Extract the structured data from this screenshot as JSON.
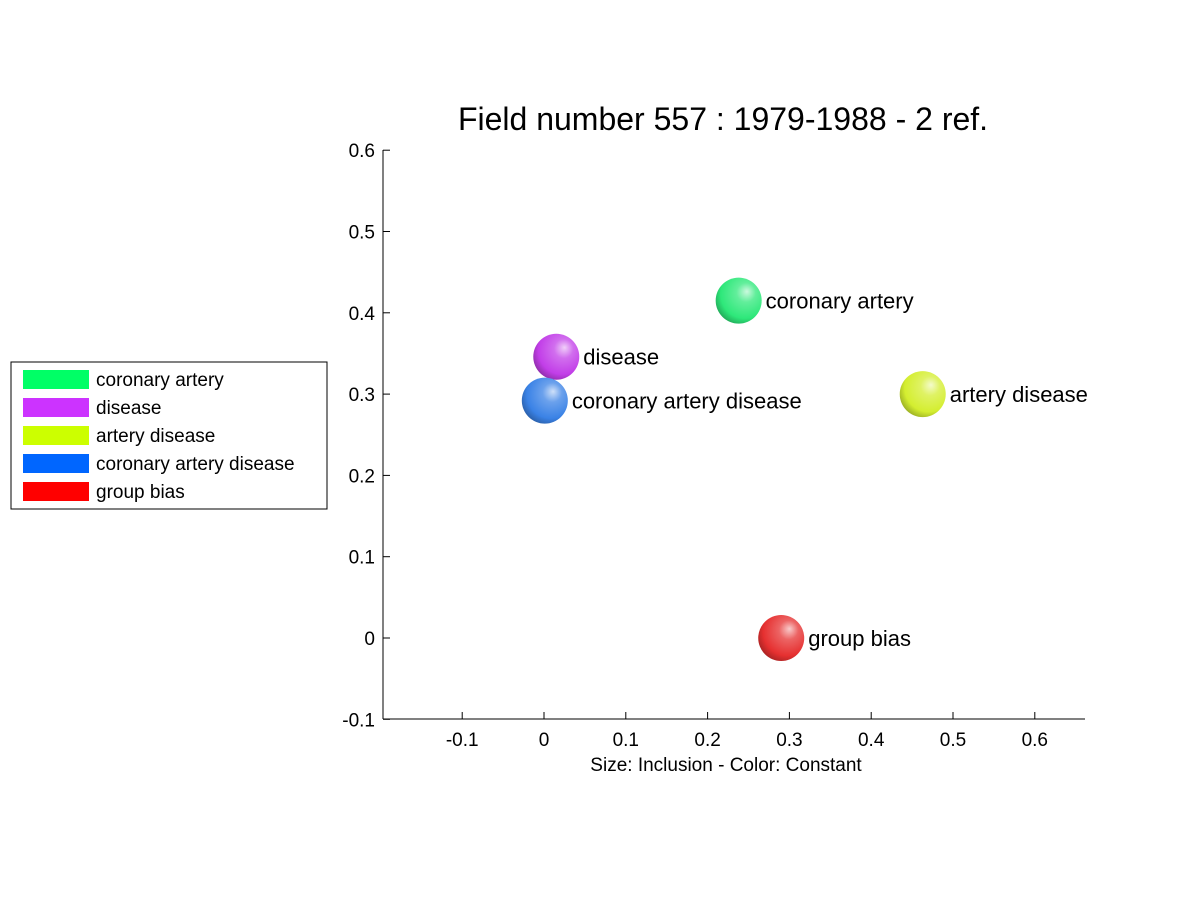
{
  "chart_data": {
    "type": "scatter",
    "title": "Field number 557 : 1979-1988  - 2 ref.",
    "xlabel": "Size: Inclusion - Color: Constant",
    "ylabel": "",
    "xlim": [
      -0.2,
      0.66
    ],
    "ylim": [
      -0.1,
      0.6
    ],
    "xticks": [
      -0.1,
      0,
      0.1,
      0.2,
      0.3,
      0.4,
      0.5,
      0.6
    ],
    "yticks": [
      -0.1,
      0,
      0.1,
      0.2,
      0.3,
      0.4,
      0.5,
      0.6
    ],
    "xtick_labels": [
      "-0.1",
      "0",
      "0.1",
      "0.2",
      "0.3",
      "0.4",
      "0.5",
      "0.6"
    ],
    "ytick_labels": [
      "-0.1",
      "0",
      "0.1",
      "0.2",
      "0.3",
      "0.4",
      "0.5",
      "0.6"
    ],
    "grid": false,
    "legend_position": "left",
    "points": [
      {
        "label": "coronary artery",
        "x": 0.238,
        "y": 0.415,
        "color": "#2ee87a",
        "legend_color": "#00ff66"
      },
      {
        "label": "disease",
        "x": 0.015,
        "y": 0.346,
        "color": "#c23ee8",
        "legend_color": "#cc33ff"
      },
      {
        "label": "artery disease",
        "x": 0.463,
        "y": 0.3,
        "color": "#d4ee30",
        "legend_color": "#ccff00"
      },
      {
        "label": "coronary artery disease",
        "x": 0.001,
        "y": 0.292,
        "color": "#3a82e6",
        "legend_color": "#0066ff"
      },
      {
        "label": "group bias",
        "x": 0.29,
        "y": 0.0,
        "color": "#e63030",
        "legend_color": "#ff0000"
      }
    ]
  }
}
